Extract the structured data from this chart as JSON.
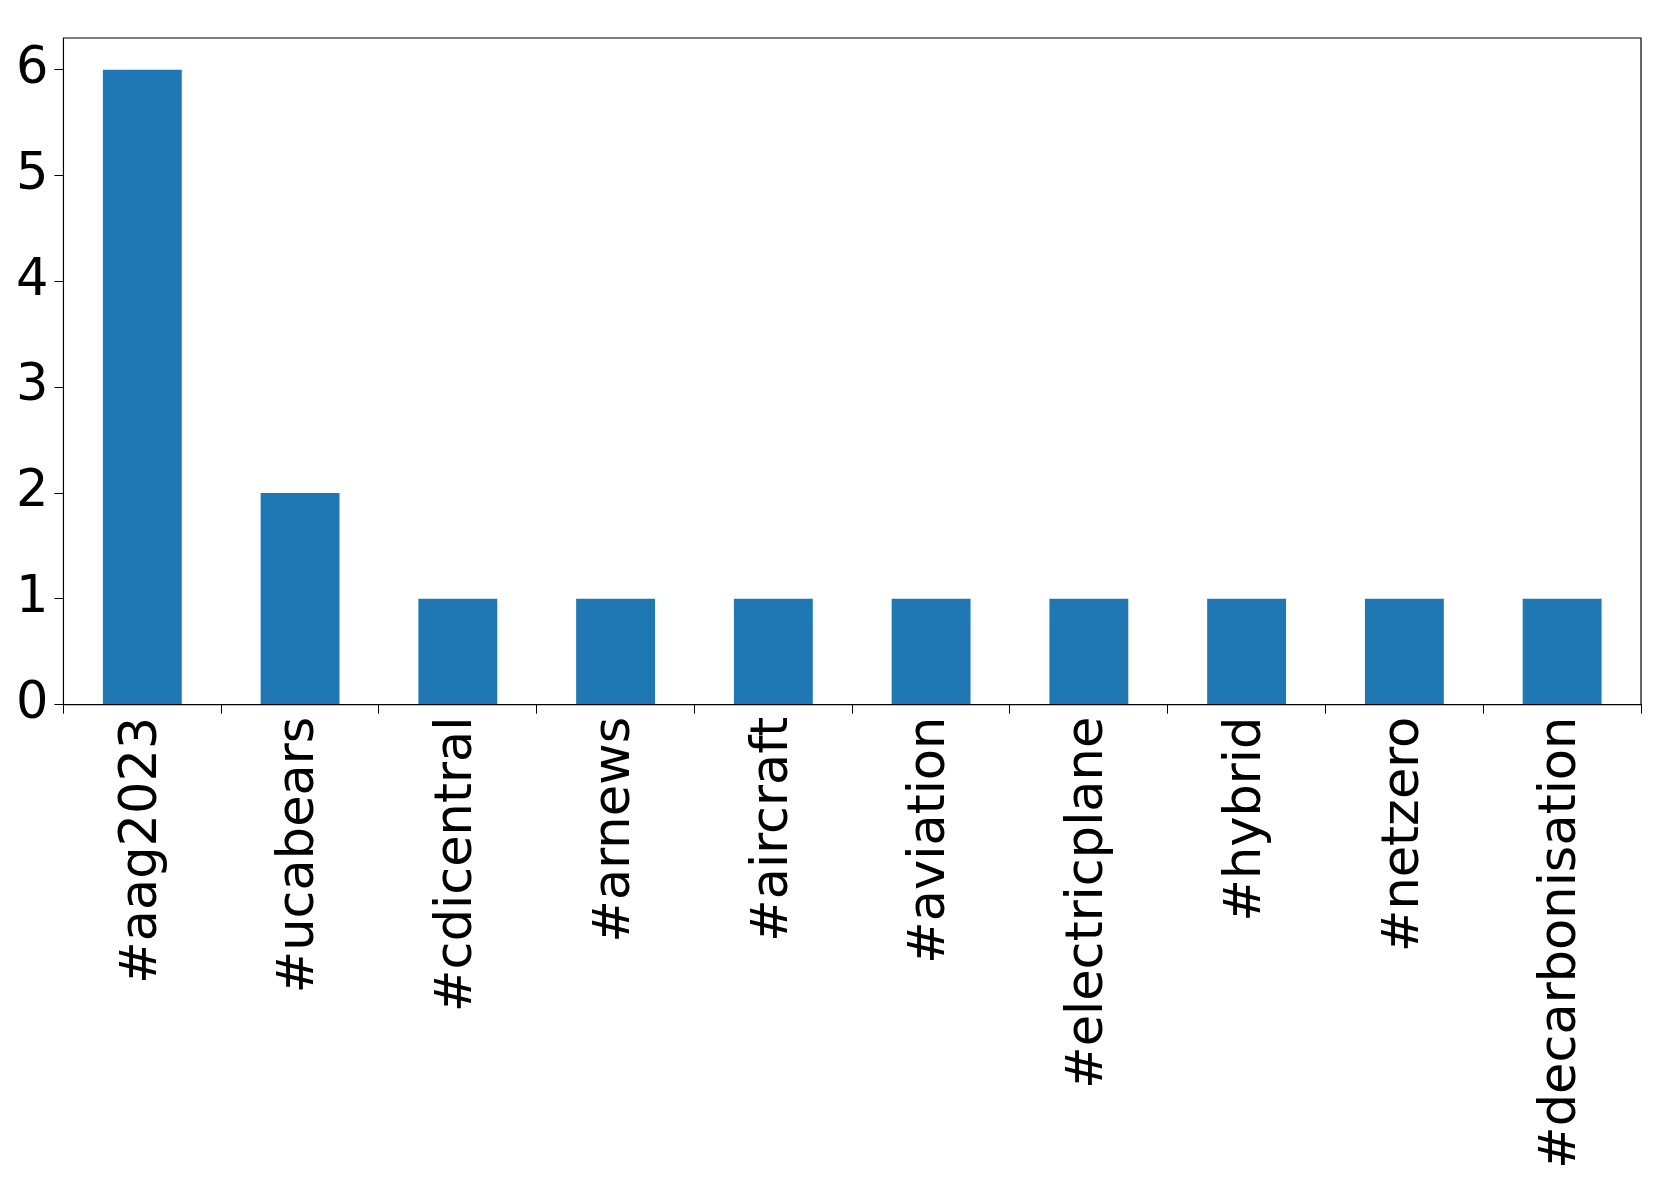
{
  "chart_data": {
    "type": "bar",
    "categories": [
      "#aag2023",
      "#ucabears",
      "#cdicentral",
      "#arnews",
      "#aircraft",
      "#aviation",
      "#electricplane",
      "#hybrid",
      "#netzero",
      "#decarbonisation"
    ],
    "values": [
      6,
      2,
      1,
      1,
      1,
      1,
      1,
      1,
      1,
      1
    ],
    "color": "#1f77b4",
    "ylim": [
      0,
      6.3
    ],
    "yticks": [
      0,
      1,
      2,
      3,
      4,
      5,
      6
    ],
    "grid": false,
    "legend": false
  }
}
